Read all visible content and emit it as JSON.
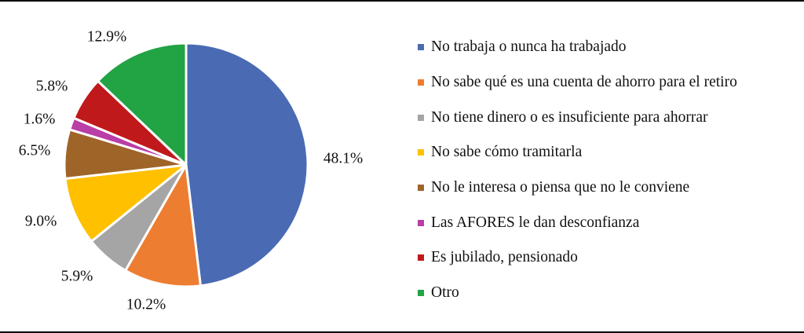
{
  "chart_data": {
    "type": "pie",
    "title": "",
    "categories": [
      "No trabaja o nunca ha trabajado",
      "No sabe qué es una cuenta de ahorro para el retiro",
      "No tiene dinero o es insuficiente para ahorrar",
      "No sabe cómo tramitarla",
      "No le interesa o piensa que no le conviene",
      "Las AFORES le dan desconfianza",
      "Es jubilado, pensionado",
      "Otro"
    ],
    "values": [
      48.1,
      10.2,
      5.9,
      9.0,
      6.5,
      1.6,
      5.8,
      12.9
    ],
    "labels": [
      "48.1%",
      "10.2%",
      "5.9%",
      "9.0%",
      "6.5%",
      "1.6%",
      "5.8%",
      "12.9%"
    ],
    "colors": [
      "#4a6bb3",
      "#ed7d31",
      "#a5a5a5",
      "#ffc000",
      "#9e6428",
      "#b93ea6",
      "#c0191c",
      "#22a344"
    ],
    "legend_position": "right",
    "start_angle": "12 o'clock",
    "direction": "clockwise"
  }
}
